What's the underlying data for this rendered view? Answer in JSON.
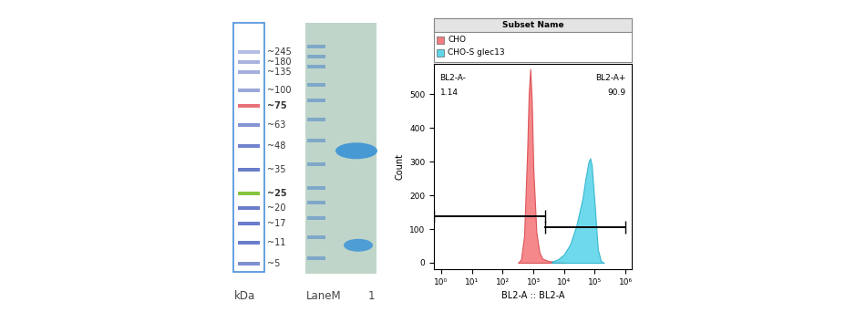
{
  "ladder": {
    "unit_label": "kDa",
    "bands": [
      {
        "label": "~245",
        "kDa": 245,
        "color": "#b4bde3",
        "bold": false
      },
      {
        "label": "~180",
        "kDa": 180,
        "color": "#a9b3df",
        "bold": false
      },
      {
        "label": "~135",
        "kDa": 135,
        "color": "#a3aedd",
        "bold": false
      },
      {
        "label": "~100",
        "kDa": 100,
        "color": "#9ba7da",
        "bold": false
      },
      {
        "label": "~75",
        "kDa": 75,
        "color": "#e8707a",
        "bold": true
      },
      {
        "label": "~63",
        "kDa": 63,
        "color": "#8494d3",
        "bold": false
      },
      {
        "label": "~48",
        "kDa": 48,
        "color": "#7183cc",
        "bold": false
      },
      {
        "label": "~35",
        "kDa": 35,
        "color": "#6a7dca",
        "bold": false
      },
      {
        "label": "~25",
        "kDa": 25,
        "color": "#86c440",
        "bold": true
      },
      {
        "label": "~20",
        "kDa": 20,
        "color": "#6a7dca",
        "bold": false
      },
      {
        "label": "~17",
        "kDa": 17,
        "color": "#6a7dca",
        "bold": false
      },
      {
        "label": "~11",
        "kDa": 11,
        "color": "#6a7dca",
        "bold": false
      },
      {
        "label": "~5",
        "kDa": 5,
        "color": "#7f8fd0",
        "bold": false
      }
    ]
  },
  "gel": {
    "lanes": [
      {
        "label": "LaneM",
        "bands_kDa": [
          245,
          180,
          135,
          100,
          75,
          63,
          48,
          35,
          25,
          20,
          17,
          11,
          5
        ],
        "color": "#6f9cc8"
      },
      {
        "label": "1",
        "bands_kDa": [
          45,
          10
        ],
        "color": "#3a93d6"
      }
    ]
  },
  "chart_data": {
    "type": "histogram",
    "legend_title": "Subset Name",
    "x_label": "BL2-A :: BL2-A",
    "y_label": "Count",
    "log": "x",
    "xlim": [
      0.58,
      1600000
    ],
    "xticks": [
      {
        "value": 1,
        "label": "10⁰"
      },
      {
        "value": 10,
        "label": "10¹"
      },
      {
        "value": 100,
        "label": "10²"
      },
      {
        "value": 1000,
        "label": "10³"
      },
      {
        "value": 10000,
        "label": "10⁴"
      },
      {
        "value": 100000,
        "label": "10⁵"
      },
      {
        "value": 1000000,
        "label": "10⁶"
      }
    ],
    "ylim": [
      -19,
      590
    ],
    "yticks": [
      0,
      100,
      200,
      300,
      400,
      500
    ],
    "series": [
      {
        "name": "CHO",
        "color": "#f47b7e",
        "x": [
          316,
          398,
          501,
          631,
          708,
          794,
          891,
          1000,
          1259,
          1585,
          1995,
          3162,
          5012,
          10000
        ],
        "values": [
          0,
          10,
          80,
          330,
          500,
          575,
          480,
          280,
          90,
          30,
          12,
          5,
          3,
          0
        ]
      },
      {
        "name": "CHO-S glec13",
        "color": "#5fd5ea",
        "x": [
          3981,
          6310,
          10000,
          15849,
          25119,
          39811,
          50119,
          63096,
          70795,
          79433,
          100000,
          125893,
          158489,
          199526
        ],
        "values": [
          3,
          10,
          25,
          55,
          110,
          190,
          250,
          300,
          310,
          290,
          170,
          40,
          5,
          0
        ]
      }
    ],
    "gates": [
      {
        "name": "BL2-A-",
        "percent": 1.14,
        "x": [
          0.58,
          2500
        ],
        "y": 138
      },
      {
        "name": "BL2-A+",
        "percent": 90.9,
        "x": [
          2500,
          1000000
        ],
        "y": 105
      }
    ]
  }
}
